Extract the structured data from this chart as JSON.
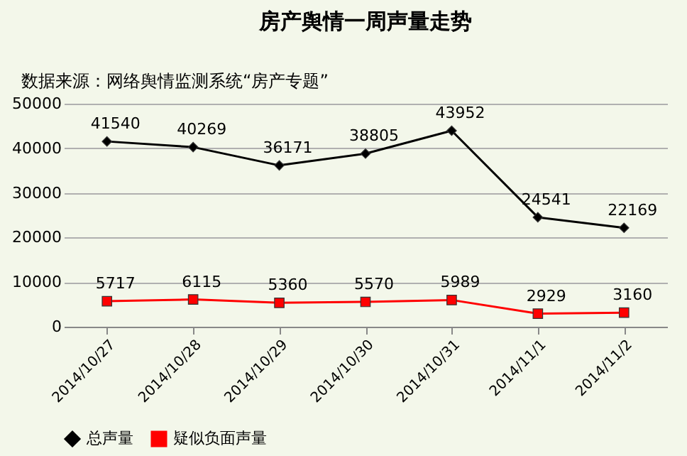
{
  "chart_data": {
    "type": "line",
    "title": "房产舆情一周声量走势",
    "annotations": [
      "数据来源：网络舆情监测系统“房产专题”"
    ],
    "categories": [
      "2014/10/27",
      "2014/10/28",
      "2014/10/29",
      "2014/10/30",
      "2014/10/31",
      "2014/11/1",
      "2014/11/2"
    ],
    "series": [
      {
        "name": "总声量",
        "color": "#000000",
        "marker": "diamond",
        "values": [
          41540,
          40269,
          36171,
          38805,
          43952,
          24541,
          22169
        ]
      },
      {
        "name": "疑似负面声量",
        "color": "#ff0000",
        "marker": "square",
        "values": [
          5717,
          6115,
          5360,
          5570,
          5989,
          2929,
          3160
        ]
      }
    ],
    "ylim": [
      0,
      50000
    ],
    "yticks": [
      0,
      10000,
      20000,
      30000,
      40000,
      50000
    ],
    "grid": "y",
    "legend": "bottom",
    "data_labels": true
  }
}
